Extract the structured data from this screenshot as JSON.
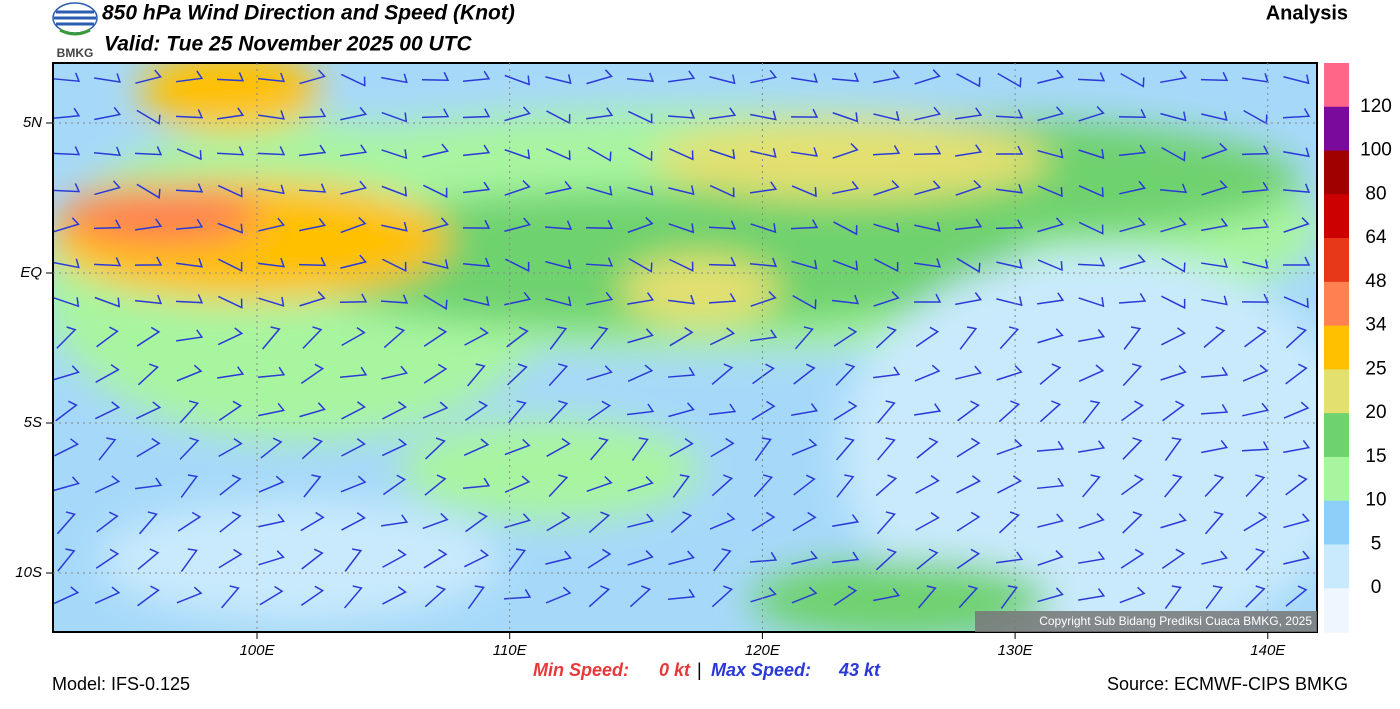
{
  "header": {
    "title": "850 hPa Wind Direction and Speed (Knot)",
    "valid": "Valid: Tue 25 November 2025 00 UTC",
    "logo": "BMKG",
    "product": "Analysis"
  },
  "map": {
    "lat_labels": [
      "5N",
      "EQ",
      "5S",
      "10S"
    ],
    "lon_labels": [
      "100E",
      "110E",
      "120E",
      "130E",
      "140E"
    ],
    "copyright": "Copyright Sub Bidang Prediksi Cuaca BMKG, 2025"
  },
  "colorbar": {
    "levels": [
      120,
      100,
      80,
      64,
      48,
      34,
      25,
      20,
      15,
      10,
      5,
      0
    ],
    "colors": [
      "#ff6688",
      "#7a0a9c",
      "#a00000",
      "#cc0000",
      "#e8381a",
      "#ff8050",
      "#ffc000",
      "#e4e070",
      "#6ed26e",
      "#a8f5a0",
      "#8dcff8",
      "#c9eafc",
      "#eef6ff"
    ]
  },
  "footer": {
    "model": "Model: IFS-0.125",
    "min_label": "Min Speed:",
    "min_value": "0 kt",
    "separator": "|",
    "max_label": "Max Speed:",
    "max_value": "43 kt",
    "source": "Source: ECMWF-CIPS BMKG"
  }
}
